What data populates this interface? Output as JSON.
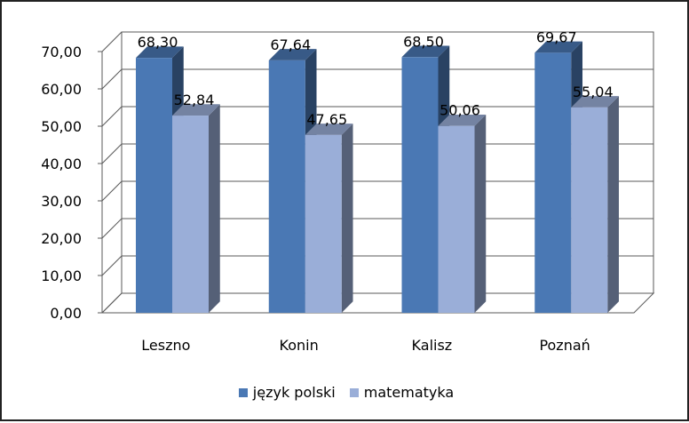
{
  "chart_data": {
    "type": "bar",
    "title": "",
    "xlabel": "",
    "ylabel": "",
    "categories": [
      "Leszno",
      "Konin",
      "Kalisz",
      "Poznań"
    ],
    "series": [
      {
        "name": "język polski",
        "values": [
          68.3,
          67.64,
          68.5,
          69.67
        ],
        "value_labels": [
          "68,30",
          "67,64",
          "68,50",
          "69,67"
        ],
        "color": "#4A78B4"
      },
      {
        "name": "matematyka",
        "values": [
          52.84,
          47.65,
          50.06,
          55.04
        ],
        "value_labels": [
          "52,84",
          "47,65",
          "50,06",
          "55,04"
        ],
        "color": "#9AAED8"
      }
    ],
    "ylim": [
      0,
      70
    ],
    "yticks": [
      0,
      10,
      20,
      30,
      40,
      50,
      60,
      70
    ],
    "ytick_labels": [
      "0,00",
      "10,00",
      "20,00",
      "30,00",
      "40,00",
      "50,00",
      "60,00",
      "70,00"
    ],
    "grid": true,
    "three_d": true,
    "legend_position": "bottom"
  }
}
